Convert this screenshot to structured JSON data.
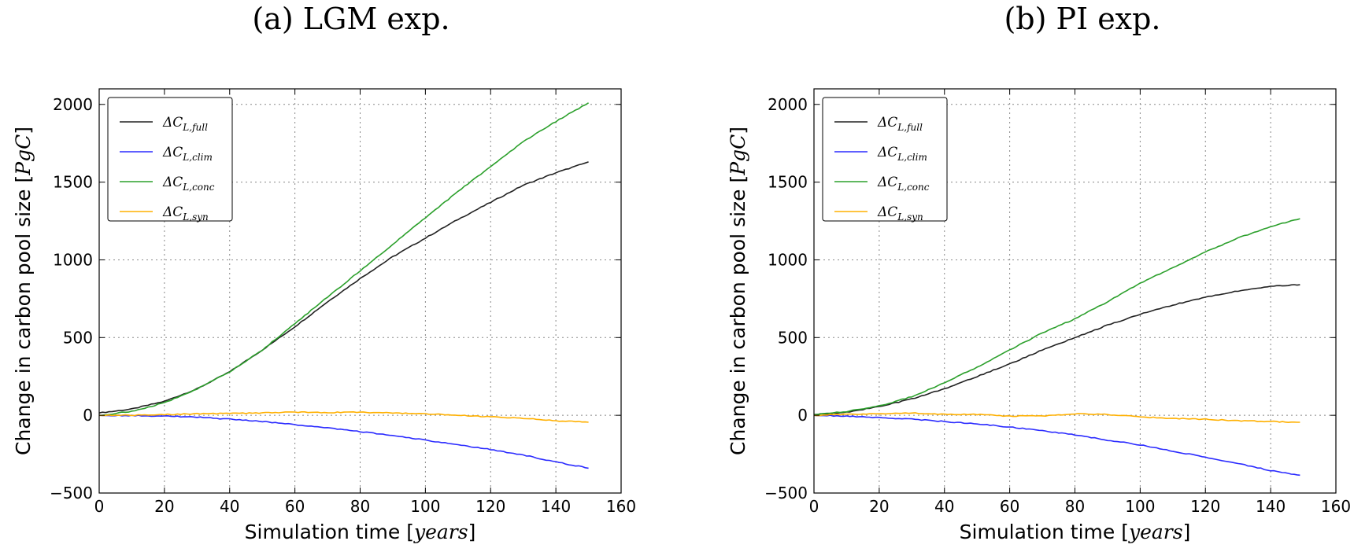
{
  "panels": [
    {
      "title": "(a) LGM exp."
    },
    {
      "title": "(b) PI exp."
    }
  ],
  "chart_data": [
    {
      "type": "line",
      "title": "(a) LGM exp.",
      "xlabel": "Simulation time [years]",
      "ylabel": "Change in carbon pool size [PgC]",
      "xlim": [
        0,
        160
      ],
      "ylim": [
        -500,
        2100
      ],
      "xticks": [
        0,
        20,
        40,
        60,
        80,
        100,
        120,
        140,
        160
      ],
      "yticks": [
        -500,
        0,
        500,
        1000,
        1500,
        2000
      ],
      "grid": true,
      "legend_position": "top-left",
      "x": [
        0,
        10,
        20,
        30,
        40,
        50,
        60,
        70,
        80,
        90,
        100,
        110,
        120,
        130,
        140,
        150
      ],
      "series": [
        {
          "name": "ΔC_L,full",
          "color": "#222222",
          "values": [
            15,
            40,
            90,
            170,
            280,
            420,
            570,
            730,
            880,
            1020,
            1140,
            1260,
            1370,
            1480,
            1560,
            1630
          ]
        },
        {
          "name": "ΔC_L,clim",
          "color": "#2b2bff",
          "values": [
            0,
            -2,
            -5,
            -12,
            -25,
            -40,
            -60,
            -80,
            -105,
            -130,
            -160,
            -190,
            -220,
            -255,
            -300,
            -340
          ]
        },
        {
          "name": "ΔC_L,conc",
          "color": "#2ca02c",
          "values": [
            0,
            25,
            80,
            170,
            280,
            420,
            590,
            760,
            930,
            1100,
            1270,
            1440,
            1600,
            1760,
            1890,
            2010
          ]
        },
        {
          "name": "ΔC_L,syn",
          "color": "#ffb000",
          "values": [
            0,
            0,
            5,
            10,
            12,
            15,
            20,
            18,
            20,
            15,
            10,
            0,
            -10,
            -20,
            -35,
            -45
          ]
        }
      ]
    },
    {
      "type": "line",
      "title": "(b) PI exp.",
      "xlabel": "Simulation time [years]",
      "ylabel": "Change in carbon pool size [PgC]",
      "xlim": [
        0,
        160
      ],
      "ylim": [
        -500,
        2100
      ],
      "xticks": [
        0,
        20,
        40,
        60,
        80,
        100,
        120,
        140,
        160
      ],
      "yticks": [
        -500,
        0,
        500,
        1000,
        1500,
        2000
      ],
      "grid": true,
      "legend_position": "top-left",
      "x": [
        0,
        10,
        20,
        30,
        40,
        50,
        60,
        70,
        80,
        90,
        100,
        110,
        120,
        130,
        140,
        149
      ],
      "series": [
        {
          "name": "ΔC_L,full",
          "color": "#222222",
          "values": [
            5,
            20,
            55,
            105,
            170,
            250,
            330,
            420,
            500,
            580,
            650,
            710,
            760,
            800,
            830,
            840
          ]
        },
        {
          "name": "ΔC_L,clim",
          "color": "#2b2bff",
          "values": [
            0,
            -5,
            -15,
            -25,
            -40,
            -55,
            -75,
            -100,
            -125,
            -160,
            -190,
            -230,
            -270,
            -310,
            -355,
            -385
          ]
        },
        {
          "name": "ΔC_L,conc",
          "color": "#2ca02c",
          "values": [
            5,
            25,
            60,
            120,
            210,
            310,
            420,
            530,
            620,
            730,
            850,
            950,
            1050,
            1140,
            1215,
            1265
          ]
        },
        {
          "name": "ΔC_L,syn",
          "color": "#ffb000",
          "values": [
            0,
            5,
            10,
            15,
            5,
            5,
            -5,
            -5,
            10,
            5,
            -10,
            -20,
            -25,
            -35,
            -40,
            -45
          ]
        }
      ]
    }
  ]
}
